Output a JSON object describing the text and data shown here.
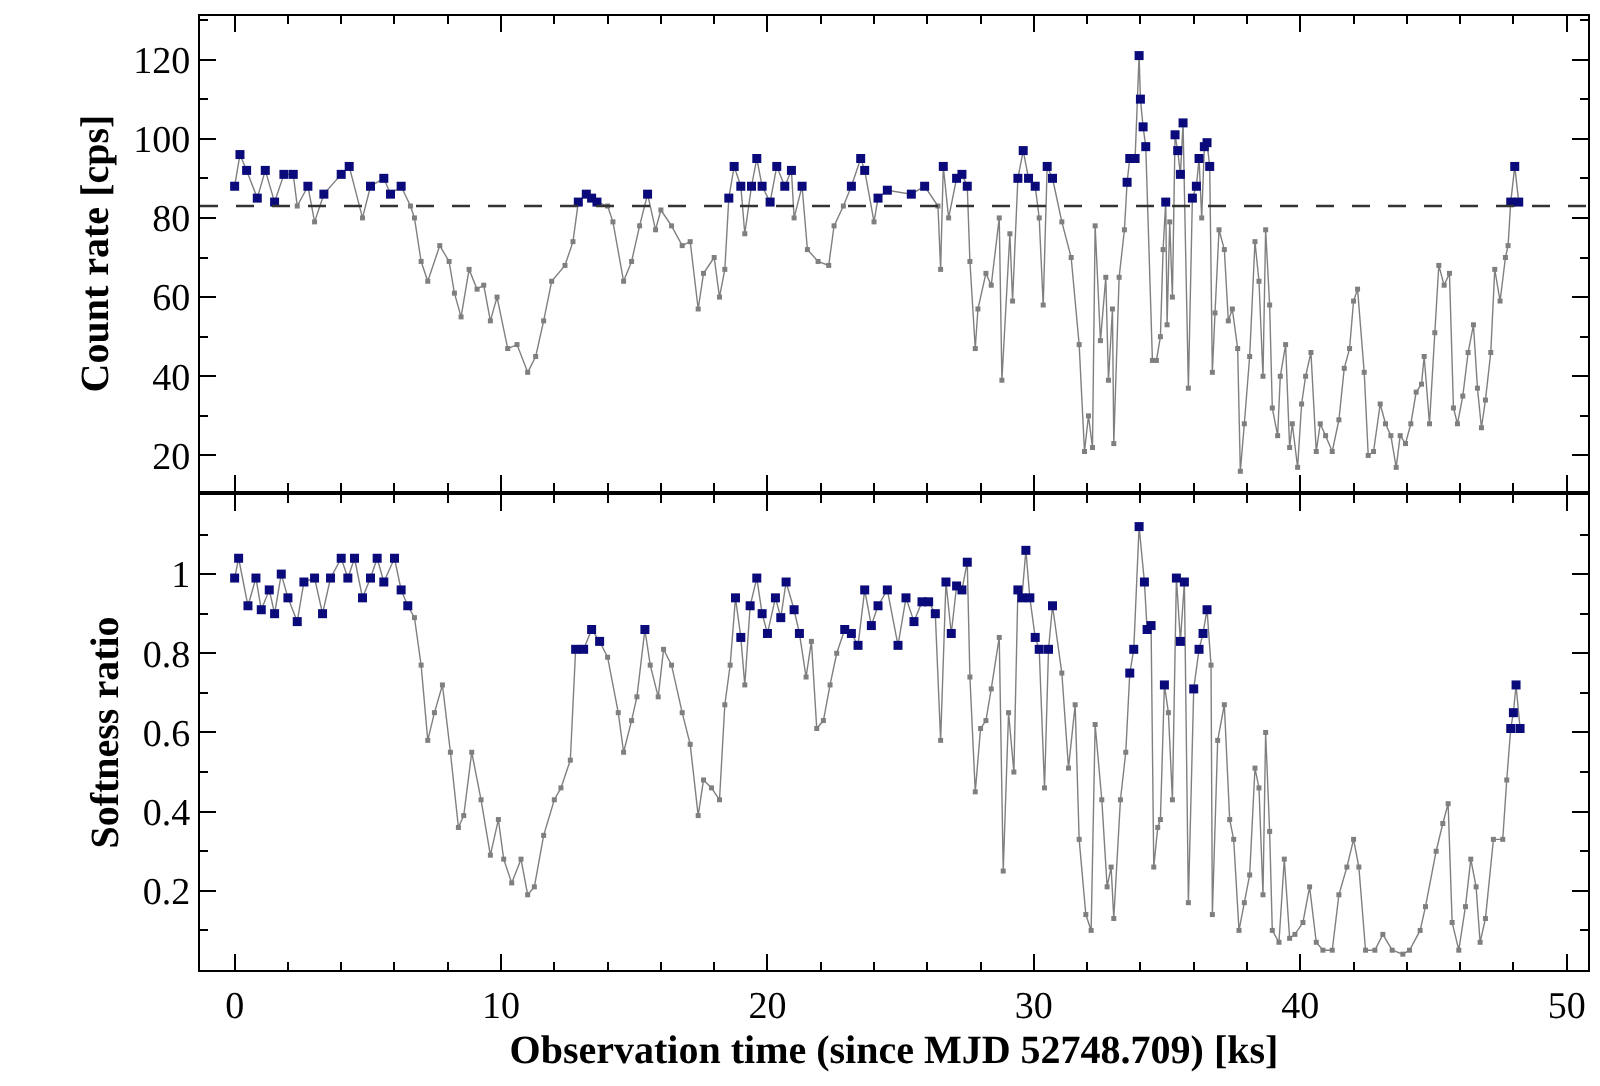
{
  "chart_data": [
    {
      "type": "line",
      "ylabel": "Count rate [cps]",
      "xlim": [
        -1.3,
        50.8
      ],
      "xticks": [
        0,
        10,
        20,
        30,
        40,
        50
      ],
      "ylim": [
        11,
        131
      ],
      "yticks": [
        20,
        40,
        60,
        80,
        100,
        120
      ],
      "tick_labels": "y",
      "marker": "square",
      "ref_lines": [
        {
          "axis": "y",
          "value": 83,
          "color": "#333333",
          "line_style": "dashed"
        }
      ],
      "series": [
        {
          "color": "#555555",
          "x": [
            0,
            0.2,
            0.45,
            0.85,
            1.15,
            1.5,
            1.85,
            2.2,
            2.35,
            2.75,
            3.0,
            3.35,
            4.0,
            4.3,
            4.8,
            5.1,
            5.6,
            5.85,
            6.25,
            6.6,
            6.75,
            7.0,
            7.25,
            7.7,
            8.05,
            8.25,
            8.5,
            8.8,
            9.1,
            9.35,
            9.6,
            9.85,
            10.25,
            10.6,
            11.0,
            11.3,
            11.6,
            11.9,
            12.4,
            12.7,
            12.9,
            13.2,
            13.4,
            13.6,
            14.0,
            14.2,
            14.6,
            14.9,
            15.2,
            15.5,
            15.8,
            16.0,
            16.4,
            16.8,
            17.1,
            17.4,
            17.6,
            18.0,
            18.2,
            18.4,
            18.55,
            18.75,
            19.0,
            19.15,
            19.4,
            19.6,
            19.8,
            20.1,
            20.35,
            20.65,
            20.9,
            21.0,
            21.3,
            21.5,
            21.9,
            22.3,
            22.5,
            22.85,
            23.15,
            23.5,
            23.65,
            24.0,
            24.15,
            24.5,
            25.4,
            25.9,
            26.4,
            26.5,
            26.6,
            26.8,
            27.1,
            27.3,
            27.5,
            27.6,
            27.8,
            27.9,
            28.2,
            28.4,
            28.7,
            28.8,
            29.1,
            29.2,
            29.4,
            29.6,
            29.8,
            30.05,
            30.2,
            30.35,
            30.5,
            30.7,
            31.05,
            31.4,
            31.7,
            31.9,
            32.05,
            32.2,
            32.3,
            32.5,
            32.7,
            32.8,
            32.95,
            33.0,
            33.2,
            33.4,
            33.5,
            33.6,
            33.8,
            33.95,
            34.0,
            34.1,
            34.2,
            34.45,
            34.6,
            34.75,
            34.85,
            34.95,
            35.0,
            35.1,
            35.2,
            35.3,
            35.4,
            35.5,
            35.6,
            35.8,
            35.95,
            36.1,
            36.2,
            36.3,
            36.4,
            36.5,
            36.6,
            36.7,
            36.8,
            36.95,
            37.15,
            37.3,
            37.45,
            37.65,
            37.75,
            37.9,
            38.1,
            38.3,
            38.45,
            38.6,
            38.7,
            38.85,
            38.95,
            39.15,
            39.25,
            39.45,
            39.6,
            39.7,
            39.9,
            40.05,
            40.2,
            40.4,
            40.6,
            40.75,
            40.95,
            41.2,
            41.45,
            41.65,
            41.85,
            42.0,
            42.15,
            42.4,
            42.55,
            42.75,
            43.0,
            43.2,
            43.4,
            43.6,
            43.75,
            43.95,
            44.15,
            44.35,
            44.55,
            44.65,
            44.85,
            45.05,
            45.2,
            45.4,
            45.6,
            45.75,
            45.9,
            46.1,
            46.3,
            46.5,
            46.65,
            46.8,
            46.95,
            47.15,
            47.3,
            47.5,
            47.7,
            47.8,
            47.9,
            48.05,
            48.2
          ],
          "values": [
            88,
            96,
            92,
            85,
            92,
            84,
            91,
            91,
            83,
            88,
            79,
            86,
            91,
            93,
            80,
            88,
            90,
            86,
            88,
            83,
            80,
            69,
            64,
            73,
            69,
            61,
            55,
            67,
            62,
            63,
            54,
            60,
            47,
            48,
            41,
            45,
            54,
            64,
            68,
            74,
            84,
            86,
            85,
            84,
            83,
            79,
            64,
            69,
            78,
            86,
            77,
            82,
            78,
            73,
            74,
            57,
            66,
            70,
            60,
            67,
            85,
            93,
            88,
            76,
            88,
            95,
            88,
            84,
            93,
            88,
            92,
            80,
            88,
            72,
            69,
            68,
            78,
            83,
            88,
            95,
            92,
            79,
            85,
            87,
            86,
            88,
            83,
            67,
            93,
            80,
            90,
            91,
            88,
            69,
            47,
            57,
            66,
            63,
            80,
            39,
            76,
            59,
            90,
            97,
            90,
            88,
            80,
            58,
            93,
            90,
            79,
            70,
            48,
            21,
            30,
            22,
            78,
            49,
            65,
            39,
            57,
            23,
            65,
            77,
            89,
            95,
            95,
            121,
            110,
            103,
            98,
            44,
            44,
            50,
            72,
            84,
            53,
            79,
            60,
            101,
            97,
            91,
            104,
            37,
            85,
            88,
            95,
            80,
            98,
            99,
            93,
            41,
            56,
            77,
            72,
            54,
            57,
            47,
            16,
            28,
            45,
            74,
            64,
            40,
            77,
            58,
            32,
            25,
            40,
            48,
            22,
            28,
            17,
            33,
            40,
            46,
            21,
            28,
            25,
            21,
            29,
            42,
            47,
            59,
            62,
            41,
            20,
            21,
            33,
            28,
            25,
            17,
            25,
            23,
            28,
            36,
            38,
            45,
            28,
            51,
            68,
            63,
            66,
            32,
            28,
            35,
            46,
            53,
            37,
            27,
            34,
            46,
            67,
            59,
            70,
            73,
            84,
            93,
            84
          ]
        },
        {
          "type": "scatter",
          "color": "#0a0a7a",
          "x": [
            0,
            0.2,
            0.45,
            0.85,
            1.15,
            1.5,
            1.85,
            2.2,
            2.75,
            3.35,
            4.0,
            4.3,
            5.1,
            5.6,
            5.85,
            6.25,
            12.9,
            13.2,
            13.4,
            13.6,
            15.5,
            18.55,
            18.75,
            19.0,
            19.4,
            19.6,
            19.8,
            20.1,
            20.35,
            20.65,
            20.9,
            21.3,
            23.15,
            23.5,
            23.65,
            24.15,
            24.5,
            25.4,
            25.9,
            26.6,
            27.1,
            27.3,
            27.5,
            29.4,
            29.6,
            29.8,
            30.05,
            30.5,
            30.7,
            33.5,
            33.6,
            33.8,
            33.95,
            34.0,
            34.1,
            34.2,
            34.95,
            35.3,
            35.4,
            35.5,
            35.6,
            35.95,
            36.1,
            36.2,
            36.4,
            36.5,
            36.6,
            47.9,
            48.05,
            48.2
          ],
          "values": [
            88,
            96,
            92,
            85,
            92,
            84,
            91,
            91,
            88,
            86,
            91,
            93,
            88,
            90,
            86,
            88,
            84,
            86,
            85,
            84,
            86,
            85,
            93,
            88,
            88,
            95,
            88,
            84,
            93,
            88,
            92,
            88,
            88,
            95,
            92,
            85,
            87,
            86,
            88,
            93,
            90,
            91,
            88,
            90,
            97,
            90,
            88,
            93,
            90,
            89,
            95,
            95,
            121,
            110,
            103,
            98,
            84,
            101,
            97,
            91,
            104,
            85,
            88,
            95,
            98,
            99,
            93,
            84,
            93,
            84
          ]
        }
      ]
    },
    {
      "type": "line",
      "xlabel": "Observation time (since MJD 52748.709) [ks]",
      "ylabel": "Softness ratio",
      "xlim": [
        -1.3,
        50.8
      ],
      "xticks": [
        0,
        10,
        20,
        30,
        40,
        50
      ],
      "ylim": [
        0,
        1.2
      ],
      "yticks": [
        0.2,
        0.4,
        0.6,
        0.8,
        1
      ],
      "marker": "square",
      "series": [
        {
          "color": "#555555",
          "x": [
            0,
            0.15,
            0.5,
            0.8,
            1.0,
            1.3,
            1.5,
            1.75,
            2.0,
            2.35,
            2.6,
            3.0,
            3.3,
            3.6,
            4.0,
            4.25,
            4.5,
            4.8,
            5.1,
            5.35,
            5.6,
            6.0,
            6.25,
            6.5,
            6.75,
            7.0,
            7.25,
            7.5,
            7.8,
            8.1,
            8.4,
            8.6,
            8.9,
            9.25,
            9.6,
            9.9,
            10.1,
            10.4,
            10.75,
            11.0,
            11.25,
            11.6,
            12.0,
            12.25,
            12.6,
            12.8,
            13.1,
            13.4,
            13.7,
            14.0,
            14.4,
            14.6,
            14.9,
            15.1,
            15.4,
            15.6,
            15.9,
            16.1,
            16.4,
            16.8,
            17.1,
            17.4,
            17.6,
            17.9,
            18.2,
            18.4,
            18.6,
            18.8,
            19.0,
            19.15,
            19.35,
            19.6,
            19.8,
            20.0,
            20.3,
            20.5,
            20.7,
            21.0,
            21.2,
            21.45,
            21.65,
            21.85,
            22.1,
            22.35,
            22.6,
            22.9,
            23.15,
            23.4,
            23.65,
            23.9,
            24.15,
            24.5,
            24.9,
            25.2,
            25.5,
            25.8,
            26.05,
            26.3,
            26.5,
            26.7,
            26.9,
            27.1,
            27.3,
            27.5,
            27.6,
            27.8,
            28.0,
            28.2,
            28.4,
            28.7,
            28.85,
            29.05,
            29.25,
            29.4,
            29.55,
            29.7,
            29.85,
            30.05,
            30.2,
            30.4,
            30.55,
            30.7,
            31.05,
            31.3,
            31.55,
            31.7,
            31.95,
            32.15,
            32.3,
            32.55,
            32.75,
            32.9,
            33.0,
            33.25,
            33.45,
            33.6,
            33.75,
            33.95,
            34.15,
            34.25,
            34.4,
            34.5,
            34.65,
            34.75,
            34.9,
            35.05,
            35.2,
            35.35,
            35.5,
            35.65,
            35.8,
            36.0,
            36.2,
            36.35,
            36.5,
            36.65,
            36.7,
            36.9,
            37.15,
            37.35,
            37.5,
            37.7,
            37.9,
            38.1,
            38.3,
            38.45,
            38.6,
            38.7,
            38.85,
            38.95,
            39.2,
            39.4,
            39.6,
            39.8,
            40.1,
            40.35,
            40.6,
            40.85,
            41.2,
            41.45,
            41.75,
            42.0,
            42.2,
            42.45,
            42.8,
            43.1,
            43.45,
            43.85,
            44.1,
            44.5,
            44.7,
            45.1,
            45.35,
            45.55,
            45.7,
            45.95,
            46.2,
            46.4,
            46.6,
            46.75,
            46.95,
            47.25,
            47.6,
            47.75,
            47.9,
            48.0,
            48.1,
            48.25
          ],
          "values": [
            0.99,
            1.04,
            0.92,
            0.99,
            0.91,
            0.96,
            0.9,
            1.0,
            0.94,
            0.88,
            0.98,
            0.99,
            0.9,
            0.99,
            1.04,
            0.99,
            1.04,
            0.94,
            0.99,
            1.04,
            0.98,
            1.04,
            0.96,
            0.92,
            0.89,
            0.77,
            0.58,
            0.65,
            0.72,
            0.55,
            0.36,
            0.39,
            0.55,
            0.43,
            0.29,
            0.38,
            0.28,
            0.22,
            0.28,
            0.19,
            0.21,
            0.34,
            0.43,
            0.46,
            0.53,
            0.81,
            0.81,
            0.86,
            0.83,
            0.79,
            0.65,
            0.55,
            0.63,
            0.69,
            0.86,
            0.77,
            0.69,
            0.81,
            0.77,
            0.65,
            0.57,
            0.39,
            0.48,
            0.46,
            0.43,
            0.67,
            0.77,
            0.94,
            0.84,
            0.72,
            0.92,
            0.99,
            0.9,
            0.85,
            0.94,
            0.89,
            0.98,
            0.91,
            0.85,
            0.74,
            0.83,
            0.61,
            0.63,
            0.72,
            0.8,
            0.86,
            0.85,
            0.82,
            0.96,
            0.87,
            0.92,
            0.96,
            0.82,
            0.94,
            0.88,
            0.93,
            0.93,
            0.9,
            0.58,
            0.98,
            0.85,
            0.97,
            0.96,
            1.03,
            0.74,
            0.45,
            0.61,
            0.63,
            0.71,
            0.84,
            0.25,
            0.65,
            0.5,
            0.96,
            0.94,
            1.06,
            0.94,
            0.84,
            0.81,
            0.46,
            0.81,
            0.92,
            0.75,
            0.51,
            0.67,
            0.33,
            0.14,
            0.1,
            0.62,
            0.43,
            0.21,
            0.26,
            0.13,
            0.43,
            0.55,
            0.75,
            0.81,
            1.12,
            0.98,
            0.86,
            0.87,
            0.26,
            0.36,
            0.38,
            0.72,
            0.65,
            0.43,
            0.99,
            0.83,
            0.98,
            0.17,
            0.71,
            0.81,
            0.85,
            0.91,
            0.77,
            0.14,
            0.58,
            0.67,
            0.38,
            0.33,
            0.1,
            0.17,
            0.24,
            0.51,
            0.46,
            0.19,
            0.6,
            0.35,
            0.1,
            0.07,
            0.28,
            0.08,
            0.09,
            0.12,
            0.21,
            0.07,
            0.05,
            0.05,
            0.19,
            0.26,
            0.33,
            0.26,
            0.05,
            0.05,
            0.09,
            0.05,
            0.04,
            0.05,
            0.1,
            0.16,
            0.3,
            0.37,
            0.42,
            0.12,
            0.05,
            0.16,
            0.28,
            0.21,
            0.07,
            0.13,
            0.33,
            0.33,
            0.48,
            0.61,
            0.65,
            0.72,
            0.61
          ]
        },
        {
          "type": "scatter",
          "color": "#0a0a7a",
          "x": [
            0,
            0.15,
            0.5,
            0.8,
            1.0,
            1.3,
            1.5,
            1.75,
            2.0,
            2.35,
            2.6,
            3.0,
            3.3,
            3.6,
            4.0,
            4.25,
            4.5,
            4.8,
            5.1,
            5.35,
            5.6,
            6.0,
            6.25,
            6.5,
            12.8,
            13.1,
            13.4,
            13.7,
            15.4,
            18.8,
            19.0,
            19.35,
            19.6,
            19.8,
            20.0,
            20.3,
            20.5,
            20.7,
            21.0,
            21.2,
            22.9,
            23.15,
            23.4,
            23.65,
            23.9,
            24.15,
            24.5,
            24.9,
            25.2,
            25.5,
            25.8,
            26.05,
            26.3,
            26.7,
            26.9,
            27.1,
            27.3,
            27.5,
            29.4,
            29.55,
            29.7,
            29.85,
            30.05,
            30.2,
            30.55,
            30.7,
            33.6,
            33.75,
            33.95,
            34.15,
            34.25,
            34.4,
            34.9,
            35.35,
            35.5,
            35.65,
            36.0,
            36.2,
            36.35,
            36.5,
            47.9,
            48.0,
            48.1,
            48.25
          ],
          "values": [
            0.99,
            1.04,
            0.92,
            0.99,
            0.91,
            0.96,
            0.9,
            1.0,
            0.94,
            0.88,
            0.98,
            0.99,
            0.9,
            0.99,
            1.04,
            0.99,
            1.04,
            0.94,
            0.99,
            1.04,
            0.98,
            1.04,
            0.96,
            0.92,
            0.81,
            0.81,
            0.86,
            0.83,
            0.86,
            0.94,
            0.84,
            0.92,
            0.99,
            0.9,
            0.85,
            0.94,
            0.89,
            0.98,
            0.91,
            0.85,
            0.86,
            0.85,
            0.82,
            0.96,
            0.87,
            0.92,
            0.96,
            0.82,
            0.94,
            0.88,
            0.93,
            0.93,
            0.9,
            0.98,
            0.85,
            0.97,
            0.96,
            1.03,
            0.96,
            0.94,
            1.06,
            0.94,
            0.84,
            0.81,
            0.81,
            0.92,
            0.75,
            0.81,
            1.12,
            0.98,
            0.86,
            0.87,
            0.72,
            0.99,
            0.83,
            0.98,
            0.71,
            0.81,
            0.85,
            0.91,
            0.61,
            0.65,
            0.72,
            0.61
          ]
        }
      ]
    }
  ]
}
